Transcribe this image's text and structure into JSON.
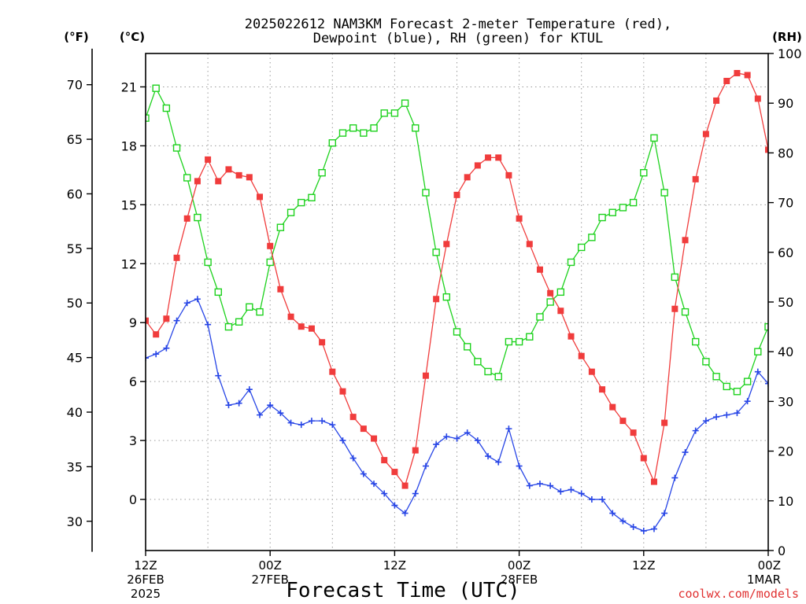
{
  "chart_data": {
    "type": "line",
    "title_line1": "2025022612 NAM3KM Forecast 2-meter Temperature (red),",
    "title_line2": "Dewpoint (blue), RH (green) for KTUL",
    "xlabel": "Forecast Time (UTC)",
    "credit": "coolwx.com/models",
    "units": {
      "fahrenheit": "(°F)",
      "celsius": "(°C)",
      "rh": "(RH)"
    },
    "celsius_ticks": [
      "21",
      "18",
      "15",
      "12",
      "9",
      "6",
      "3",
      "0"
    ],
    "fahrenheit_ticks": [
      "70",
      "65",
      "60",
      "55",
      "50",
      "45",
      "40",
      "35",
      "30"
    ],
    "rh_ticks": [
      "100",
      "90",
      "80",
      "70",
      "60",
      "50",
      "40",
      "30",
      "20",
      "10",
      "0"
    ],
    "x_ticks": [
      {
        "hour": 0,
        "lines": [
          "12Z",
          "26FEB",
          "2025"
        ]
      },
      {
        "hour": 12,
        "lines": [
          "00Z",
          "27FEB"
        ]
      },
      {
        "hour": 24,
        "lines": [
          "12Z"
        ]
      },
      {
        "hour": 36,
        "lines": [
          "00Z",
          "28FEB"
        ]
      },
      {
        "hour": 48,
        "lines": [
          "12Z"
        ]
      },
      {
        "hour": 60,
        "lines": [
          "00Z",
          "1MAR"
        ]
      }
    ],
    "x_range_hours": [
      0,
      60
    ],
    "y_range_celsius": [
      -2.6,
      22.7
    ],
    "y_range_rh": [
      0,
      100
    ],
    "grid": true,
    "series": [
      {
        "name": "Temperature",
        "axis": "celsius",
        "color": "#f03c3c",
        "marker": "filled-square",
        "values": [
          9.1,
          8.4,
          9.2,
          12.3,
          14.3,
          16.2,
          17.3,
          16.2,
          16.8,
          16.5,
          16.4,
          15.4,
          12.9,
          10.7,
          9.3,
          8.8,
          8.7,
          8.0,
          6.5,
          5.5,
          4.2,
          3.6,
          3.1,
          2.0,
          1.4,
          0.7,
          2.5,
          6.3,
          10.2,
          13.0,
          15.5,
          16.4,
          17.0,
          17.4,
          17.4,
          16.5,
          14.3,
          13.0,
          11.7,
          10.5,
          9.6,
          8.3,
          7.3,
          6.5,
          5.6,
          4.7,
          4.0,
          3.4,
          2.1,
          0.9,
          3.9,
          9.7,
          13.2,
          16.3,
          18.6,
          20.3,
          21.3,
          21.7,
          21.6,
          20.4,
          17.8
        ]
      },
      {
        "name": "Dewpoint",
        "axis": "celsius",
        "color": "#2846e6",
        "marker": "plus",
        "values": [
          7.2,
          7.4,
          7.7,
          9.1,
          10.0,
          10.2,
          8.9,
          6.3,
          4.8,
          4.9,
          5.6,
          4.3,
          4.8,
          4.4,
          3.9,
          3.8,
          4.0,
          4.0,
          3.8,
          3.0,
          2.1,
          1.3,
          0.8,
          0.3,
          -0.3,
          -0.7,
          0.3,
          1.7,
          2.8,
          3.2,
          3.1,
          3.4,
          3.0,
          2.2,
          1.9,
          3.6,
          1.7,
          0.7,
          0.8,
          0.7,
          0.4,
          0.5,
          0.3,
          0.0,
          0.0,
          -0.7,
          -1.1,
          -1.4,
          -1.6,
          -1.5,
          -0.7,
          1.1,
          2.4,
          3.5,
          4.0,
          4.2,
          4.3,
          4.4,
          5.0,
          6.5,
          5.9
        ]
      },
      {
        "name": "RH",
        "axis": "rh",
        "color": "#1ed21e",
        "marker": "open-square",
        "values": [
          87,
          93,
          89,
          81,
          75,
          67,
          58,
          52,
          45,
          46,
          49,
          48,
          58,
          65,
          68,
          70,
          71,
          76,
          82,
          84,
          85,
          84,
          85,
          88,
          88,
          90,
          85,
          72,
          60,
          51,
          44,
          41,
          38,
          36,
          35,
          42,
          42,
          43,
          47,
          50,
          52,
          58,
          61,
          63,
          67,
          68,
          69,
          70,
          76,
          83,
          72,
          55,
          48,
          42,
          38,
          35,
          33,
          32,
          34,
          40,
          45
        ]
      }
    ]
  }
}
